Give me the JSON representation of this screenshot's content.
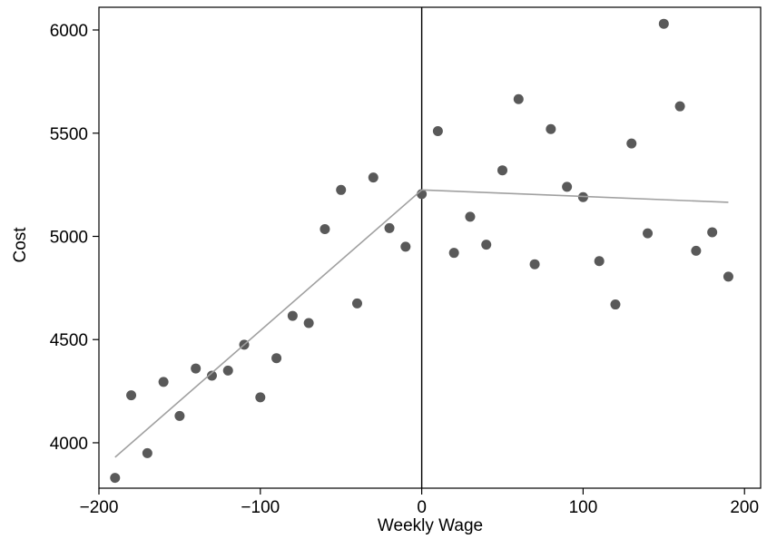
{
  "chart_data": {
    "type": "scatter",
    "title": "",
    "xlabel": "Weekly Wage",
    "ylabel": "Cost",
    "xlim": [
      -200,
      210
    ],
    "ylim": [
      3780,
      6110
    ],
    "x_ticks": [
      -200,
      -100,
      0,
      100,
      200
    ],
    "x_tick_labels": [
      "−200",
      "−100",
      "0",
      "100",
      "200"
    ],
    "y_ticks": [
      4000,
      4500,
      5000,
      5500,
      6000
    ],
    "y_tick_labels": [
      "4000",
      "4500",
      "5000",
      "5500",
      "6000"
    ],
    "grid": false,
    "legend": "none",
    "cutoff_x": 0,
    "series": [
      {
        "values": [
          {
            "x": -190,
            "y": 3830
          },
          {
            "x": -180,
            "y": 4230
          },
          {
            "x": -170,
            "y": 3950
          },
          {
            "x": -160,
            "y": 4295
          },
          {
            "x": -150,
            "y": 4130
          },
          {
            "x": -140,
            "y": 4360
          },
          {
            "x": -130,
            "y": 4325
          },
          {
            "x": -120,
            "y": 4350
          },
          {
            "x": -110,
            "y": 4475
          },
          {
            "x": -100,
            "y": 4220
          },
          {
            "x": -90,
            "y": 4410
          },
          {
            "x": -80,
            "y": 4615
          },
          {
            "x": -70,
            "y": 4580
          },
          {
            "x": -60,
            "y": 5035
          },
          {
            "x": -50,
            "y": 5225
          },
          {
            "x": -40,
            "y": 4675
          },
          {
            "x": -30,
            "y": 5285
          },
          {
            "x": -20,
            "y": 5040
          },
          {
            "x": -10,
            "y": 4950
          },
          {
            "x": 0,
            "y": 5205
          },
          {
            "x": 10,
            "y": 5510
          },
          {
            "x": 20,
            "y": 4920
          },
          {
            "x": 30,
            "y": 5095
          },
          {
            "x": 40,
            "y": 4960
          },
          {
            "x": 50,
            "y": 5320
          },
          {
            "x": 60,
            "y": 5665
          },
          {
            "x": 70,
            "y": 4865
          },
          {
            "x": 80,
            "y": 5520
          },
          {
            "x": 90,
            "y": 5240
          },
          {
            "x": 100,
            "y": 5190
          },
          {
            "x": 110,
            "y": 4880
          },
          {
            "x": 120,
            "y": 4670
          },
          {
            "x": 130,
            "y": 5450
          },
          {
            "x": 140,
            "y": 5015
          },
          {
            "x": 150,
            "y": 6030
          },
          {
            "x": 160,
            "y": 5630
          },
          {
            "x": 170,
            "y": 4930
          },
          {
            "x": 180,
            "y": 5020
          },
          {
            "x": 190,
            "y": 4805
          }
        ]
      }
    ],
    "fit_lines": [
      {
        "x": [
          -190,
          0
        ],
        "y": [
          3930,
          5225
        ]
      },
      {
        "x": [
          0,
          190
        ],
        "y": [
          5225,
          5165
        ]
      }
    ],
    "colors": {
      "points": "#595959",
      "fit": "#a0a0a0",
      "axis": "#000000"
    }
  }
}
